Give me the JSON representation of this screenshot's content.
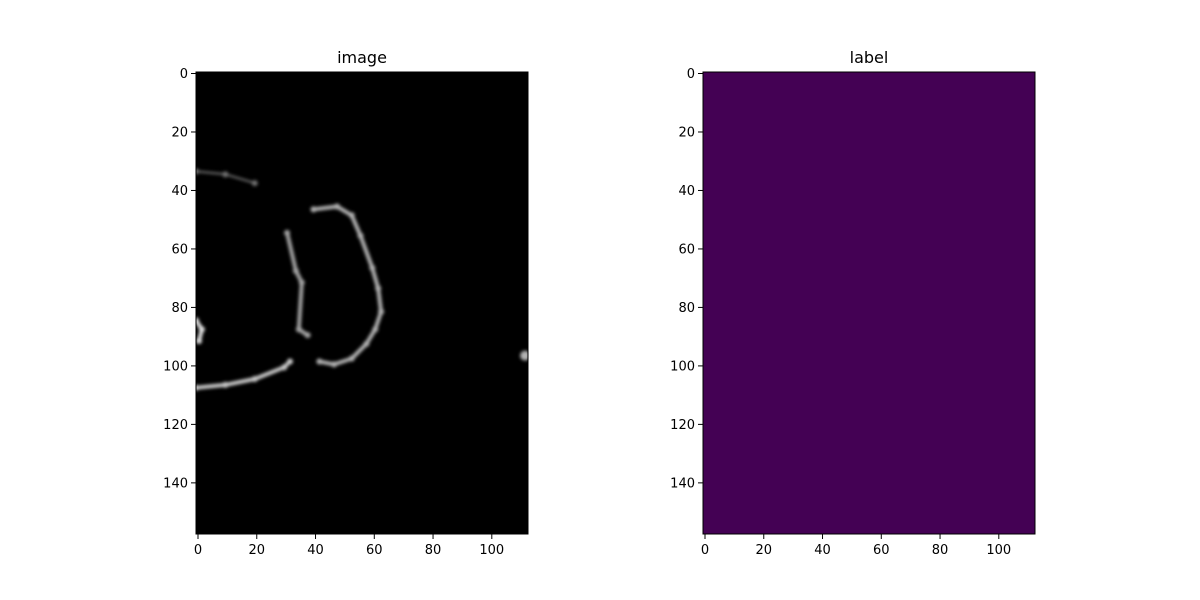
{
  "chart_data": [
    {
      "type": "heatmap",
      "title": "image",
      "colormap": "gray",
      "xlim": [
        0,
        113
      ],
      "ylim": [
        158,
        0
      ],
      "x_ticks": [
        "0",
        "20",
        "40",
        "60",
        "80",
        "100"
      ],
      "y_ticks": [
        "0",
        "20",
        "40",
        "60",
        "80",
        "100",
        "120",
        "140"
      ],
      "background_value": 0,
      "bright_regions": [
        {
          "name": "upper-arc",
          "points": [
            [
              0,
              34
            ],
            [
              10,
              35
            ],
            [
              20,
              38
            ]
          ],
          "intensity": 0.45
        },
        {
          "name": "right-arc",
          "points": [
            [
              40,
              47
            ],
            [
              48,
              46
            ],
            [
              53,
              49
            ],
            [
              56,
              56
            ],
            [
              60,
              67
            ],
            [
              62,
              74
            ],
            [
              63,
              82
            ],
            [
              61,
              88
            ],
            [
              58,
              93
            ],
            [
              53,
              98
            ],
            [
              47,
              100
            ],
            [
              42,
              99
            ]
          ],
          "intensity": 0.7
        },
        {
          "name": "lower-arc",
          "points": [
            [
              0,
              108
            ],
            [
              10,
              107
            ],
            [
              20,
              105
            ],
            [
              30,
              101
            ],
            [
              32,
              99
            ]
          ],
          "intensity": 0.8
        },
        {
          "name": "left-spot",
          "points": [
            [
              0,
              85
            ],
            [
              2,
              88
            ],
            [
              1,
              92
            ]
          ],
          "intensity": 0.9
        },
        {
          "name": "inner-spots",
          "points": [
            [
              31,
              55
            ],
            [
              34,
              68
            ],
            [
              36,
              72
            ],
            [
              35,
              88
            ],
            [
              38,
              90
            ]
          ],
          "intensity": 0.65
        },
        {
          "name": "edge-spot",
          "points": [
            [
              112,
              97
            ]
          ],
          "intensity": 0.7
        }
      ]
    },
    {
      "type": "heatmap",
      "title": "label",
      "colormap": "viridis",
      "xlim": [
        0,
        113
      ],
      "ylim": [
        158,
        0
      ],
      "x_ticks": [
        "0",
        "20",
        "40",
        "60",
        "80",
        "100"
      ],
      "y_ticks": [
        "0",
        "20",
        "40",
        "60",
        "80",
        "100",
        "120",
        "140"
      ],
      "fill_color": "#440154",
      "uniform_value": 0
    }
  ]
}
